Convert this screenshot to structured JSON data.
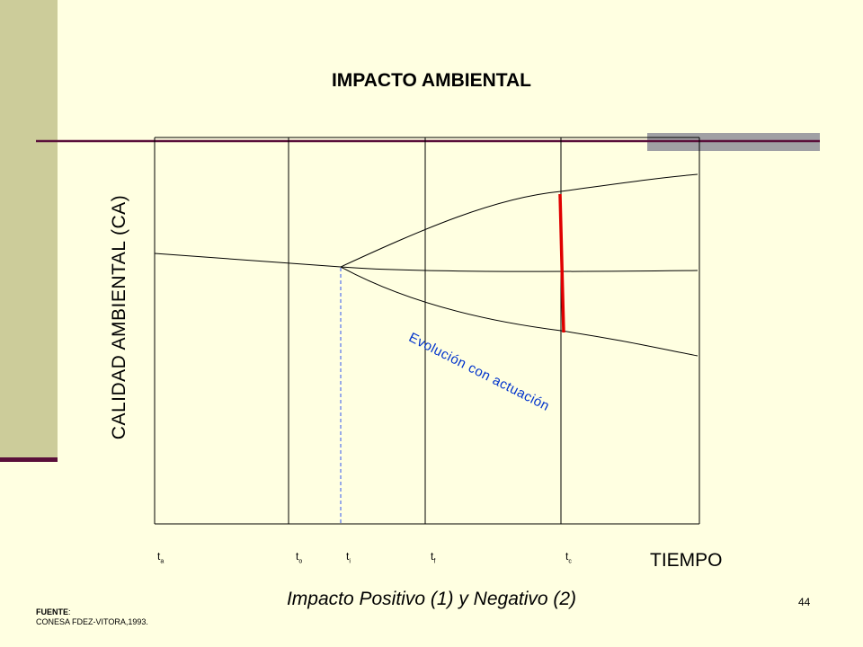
{
  "slide": {
    "title": "IMPACTO  AMBIENTAL",
    "page_number": "44",
    "caption": "Impacto Positivo (1) y Negativo (2)",
    "source_label": "FUENTE",
    "source_colon": ":",
    "source_text": "CONESA FDEZ-VITORA,1993.",
    "colors": {
      "background": "#ffffe1",
      "side_bar": "#cccc9a",
      "rule": "#5a0f3a",
      "gray_band": "#a0a0a4",
      "red_marker": "#e00000",
      "annotation": "#0033cc",
      "dashed_line": "#3355ee"
    }
  },
  "diagram": {
    "y_axis_label": "CALIDAD  AMBIENTAL (CA)",
    "x_axis_label": "TIEMPO",
    "annotation": "Evolución con actuación",
    "ticks": [
      {
        "main": "t",
        "sub": "a"
      },
      {
        "main": "t",
        "sub": "o"
      },
      {
        "main": "t",
        "sub": "i"
      },
      {
        "main": "t",
        "sub": "f"
      },
      {
        "main": "t",
        "sub": "c"
      }
    ]
  }
}
